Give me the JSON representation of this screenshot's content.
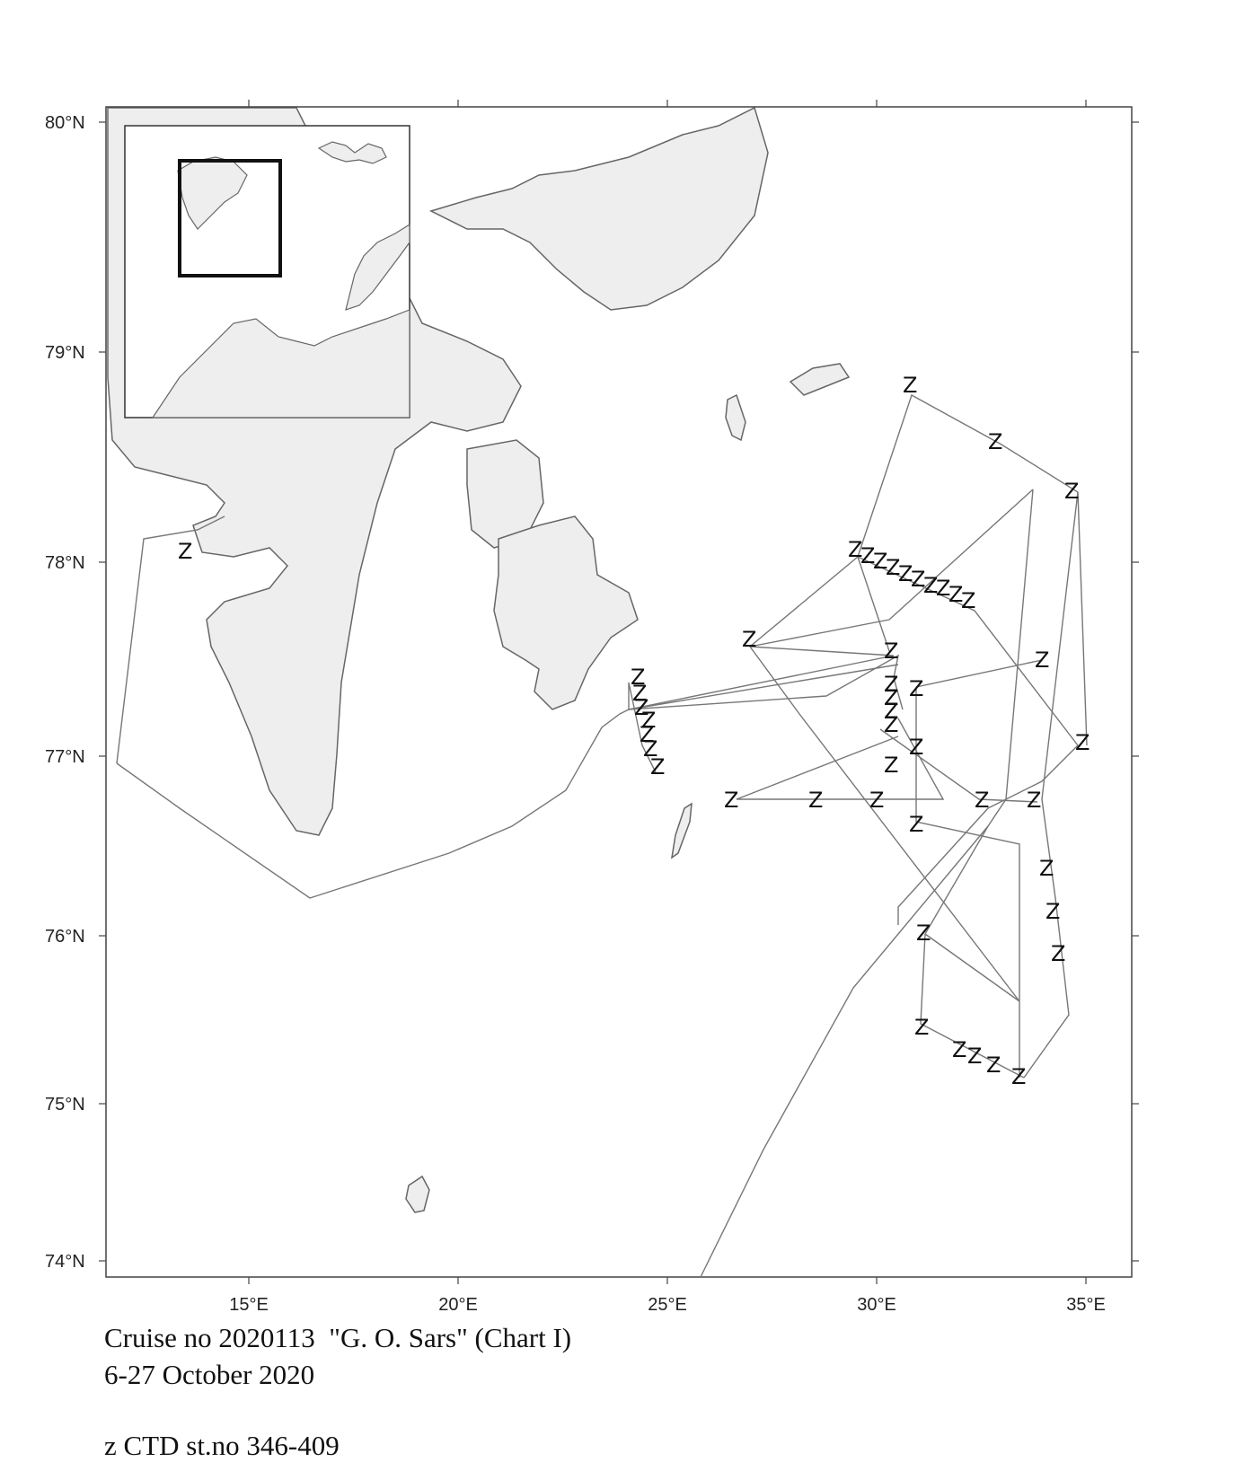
{
  "map": {
    "lat_labels": [
      "80°N",
      "79°N",
      "78°N",
      "77°N",
      "76°N",
      "75°N",
      "74°N"
    ],
    "lon_labels": [
      "15°E",
      "20°E",
      "25°E",
      "30°E",
      "35°E"
    ],
    "station_marker": "Z",
    "colors": {
      "land": "#eeeeee",
      "coast": "#666666",
      "track": "#777777",
      "inset_box": "#111111"
    }
  },
  "caption": {
    "line1": "Cruise no 2020113  \"G. O. Sars\" (Chart I)",
    "line2": "6-27 October 2020",
    "line3": "z CTD st.no 346-409"
  }
}
